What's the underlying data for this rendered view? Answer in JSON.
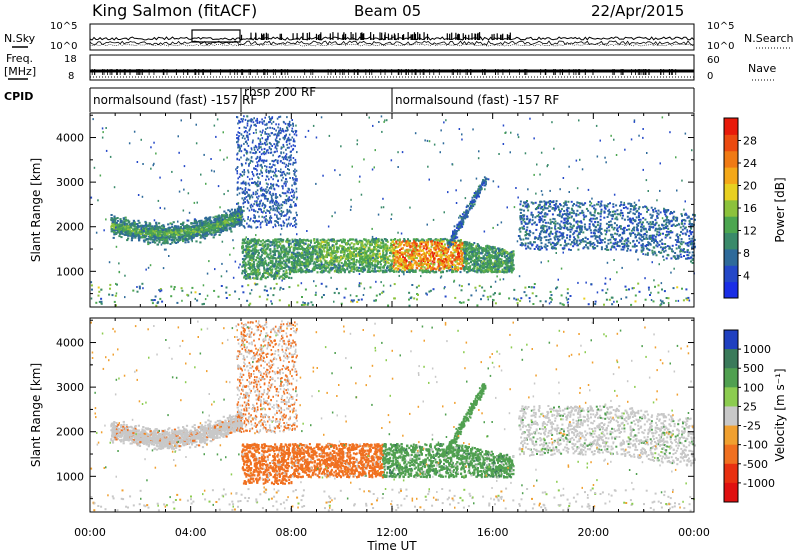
{
  "header": {
    "radar": "King Salmon (fitACF)",
    "beam": "Beam 05",
    "date": "22/Apr/2015"
  },
  "strips": {
    "nsky_label": "N.Sky",
    "nsearch_label": "N.Search",
    "freq_label_1": "Freq.",
    "freq_label_2": "[MHz]",
    "nave_label": "Nave",
    "cpid_label": "CPID",
    "noise_left_ticks": [
      "10^5",
      "10^0"
    ],
    "noise_right_ticks": [
      "10^5",
      "10^0"
    ],
    "freq_ticks": [
      "18",
      "8"
    ],
    "nave_ticks": [
      "60",
      "0"
    ],
    "cpid_segments": [
      {
        "text": "normalsound (fast) -157 RF",
        "start_hour": 0,
        "end_hour": 12
      },
      {
        "text": "rbsp 200 RF",
        "start_hour": 6,
        "end_hour": 12
      },
      {
        "text": "normalsound (fast) -157 RF",
        "start_hour": 12,
        "end_hour": 24
      }
    ]
  },
  "chart_data": [
    {
      "type": "heatmap",
      "title": "",
      "xlabel": "",
      "ylabel": "Slant Range [km]",
      "xlim": [
        0,
        24
      ],
      "ylim": [
        200,
        4550
      ],
      "y_ticks": [
        1000,
        2000,
        3000,
        4000
      ],
      "colorbar": {
        "label": "Power [dB]",
        "ticks": [
          4,
          8,
          12,
          16,
          20,
          24,
          28
        ],
        "range": [
          0,
          32
        ],
        "colors": [
          "#1a2ee6",
          "#2448c8",
          "#2e6a9a",
          "#3a8a6a",
          "#4ca650",
          "#8cc23c",
          "#e8d020",
          "#f4a818",
          "#f07a14",
          "#ec4a10",
          "#e81a0a"
        ]
      },
      "regions": [
        {
          "name": "morning-arc",
          "x": [
            0.8,
            6.0
          ],
          "range_km": [
            1700,
            2500
          ],
          "value": 9
        },
        {
          "name": "spread-high",
          "x": [
            6.0,
            8.0
          ],
          "range_km": [
            2000,
            4500
          ],
          "value": 6
        },
        {
          "name": "main-patch",
          "x": [
            6.0,
            16.8
          ],
          "range_km": [
            850,
            1800
          ],
          "value": 13
        },
        {
          "name": "strong-core",
          "x": [
            12.5,
            14.5
          ],
          "range_km": [
            1100,
            1700
          ],
          "value": 24
        },
        {
          "name": "evening-echoes",
          "x": [
            17.0,
            24.0
          ],
          "range_km": [
            1500,
            2700
          ],
          "value": 6
        }
      ]
    },
    {
      "type": "heatmap",
      "title": "",
      "xlabel": "Time UT",
      "ylabel": "Slant Range [km]",
      "xlim": [
        0,
        24
      ],
      "ylim": [
        200,
        4550
      ],
      "x_ticks": [
        "00:00",
        "04:00",
        "08:00",
        "12:00",
        "16:00",
        "20:00",
        "00:00"
      ],
      "y_ticks": [
        1000,
        2000,
        3000,
        4000
      ],
      "colorbar": {
        "label": "Velocity [m s⁻¹]",
        "ticks": [
          "1000",
          "500",
          "100",
          "25",
          "-25",
          "-100",
          "-500",
          "-1000"
        ],
        "colors": [
          "#2040c0",
          "#3a7a5a",
          "#50a050",
          "#8ccc50",
          "#c8c8c8",
          "#f0a030",
          "#f07020",
          "#e83010",
          "#e01010"
        ]
      },
      "regions": [
        {
          "name": "morning-arc",
          "x": [
            0.8,
            6.0
          ],
          "range_km": [
            1600,
            2200
          ],
          "value": 0
        },
        {
          "name": "negative-patch",
          "x": [
            6.0,
            11.5
          ],
          "range_km": [
            800,
            1900
          ],
          "value": -300
        },
        {
          "name": "positive-patch",
          "x": [
            12.0,
            16.8
          ],
          "range_km": [
            850,
            1800
          ],
          "value": 200
        },
        {
          "name": "evening-echoes",
          "x": [
            18.0,
            22.5
          ],
          "range_km": [
            1500,
            2500
          ],
          "value": 0
        }
      ]
    }
  ]
}
